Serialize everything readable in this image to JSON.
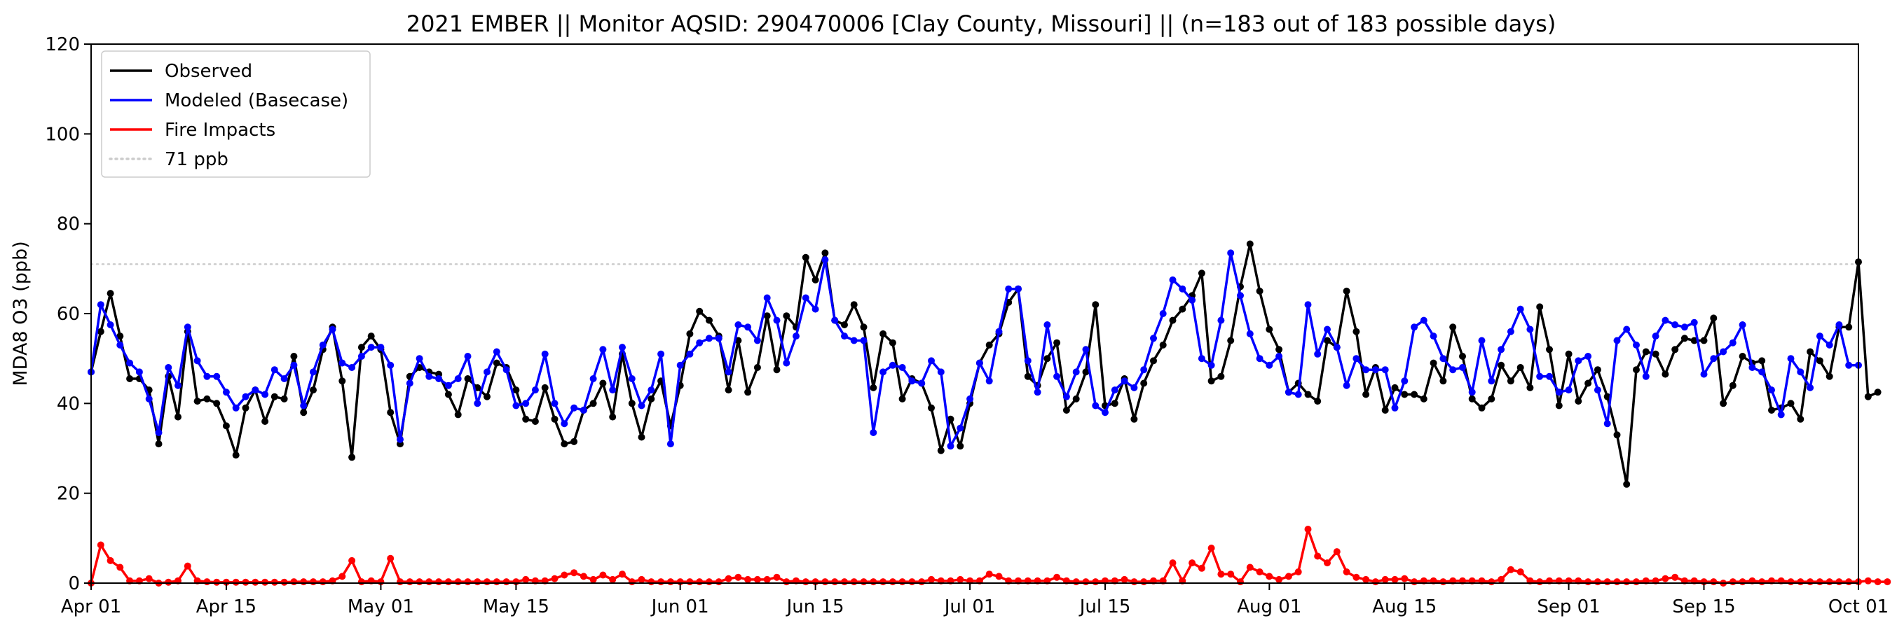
{
  "chart_data": {
    "type": "line",
    "title": "2021 EMBER || Monitor AQSID: 290470006 [Clay County, Missouri] || (n=183 out of 183 possible days)",
    "xlabel": "",
    "ylabel": "MDA8 O3 (ppb)",
    "ylim": [
      0,
      120
    ],
    "yticks": [
      0,
      20,
      40,
      60,
      80,
      100,
      120
    ],
    "xlim": [
      "2021-04-01",
      "2021-10-01"
    ],
    "xticks": [
      {
        "label": "Apr 01",
        "date": "2021-04-01"
      },
      {
        "label": "Apr 15",
        "date": "2021-04-15"
      },
      {
        "label": "May 01",
        "date": "2021-05-01"
      },
      {
        "label": "May 15",
        "date": "2021-05-15"
      },
      {
        "label": "Jun 01",
        "date": "2021-06-01"
      },
      {
        "label": "Jun 15",
        "date": "2021-06-15"
      },
      {
        "label": "Jul 01",
        "date": "2021-07-01"
      },
      {
        "label": "Jul 15",
        "date": "2021-07-15"
      },
      {
        "label": "Aug 01",
        "date": "2021-08-01"
      },
      {
        "label": "Aug 15",
        "date": "2021-08-15"
      },
      {
        "label": "Sep 01",
        "date": "2021-09-01"
      },
      {
        "label": "Sep 15",
        "date": "2021-09-15"
      },
      {
        "label": "Oct 01",
        "date": "2021-10-01"
      }
    ],
    "x_start": "2021-04-01",
    "grid": false,
    "legend_position": "upper-left",
    "reference_line": {
      "label": "71 ppb",
      "value": 71,
      "color": "#cccccc",
      "style": "dotted"
    },
    "series": [
      {
        "name": "Observed",
        "color": "#000000",
        "values": [
          47,
          56,
          64.5,
          55,
          45.5,
          45.5,
          43,
          31,
          46,
          37,
          56,
          40.5,
          41,
          40,
          35,
          28.5,
          39,
          43,
          36,
          41.5,
          41,
          50.5,
          38,
          43,
          52,
          57,
          45,
          28,
          52.5,
          55,
          52,
          38,
          31,
          46,
          48,
          47,
          46.5,
          42,
          37.5,
          45.5,
          43.5,
          41.5,
          49,
          48,
          43,
          36.5,
          36,
          43.5,
          36.5,
          31,
          31.5,
          38.5,
          40,
          44.5,
          37,
          51,
          40,
          32.5,
          41,
          45,
          35,
          44,
          55.5,
          60.5,
          58.5,
          55,
          43,
          54,
          42.5,
          48,
          59.5,
          47.5,
          59.5,
          57,
          72.5,
          67.5,
          73.5,
          58.5,
          57.5,
          62,
          57,
          43.5,
          55.5,
          53.5,
          41,
          45.5,
          44.5,
          39,
          29.5,
          36.5,
          30.5,
          40,
          49,
          53,
          55.5,
          62.5,
          65.5,
          46,
          44,
          50,
          53.5,
          38.5,
          41,
          47,
          62,
          39.5,
          40,
          45.5,
          36.5,
          44.5,
          49.5,
          53,
          58.5,
          61,
          64,
          69,
          45,
          46,
          54,
          66,
          75.5,
          65,
          56.5,
          52,
          42.5,
          44.5,
          42,
          40.5,
          54,
          52.5,
          65,
          56,
          42,
          48,
          38.5,
          43.5,
          42,
          42,
          41,
          49,
          45,
          57,
          50.5,
          41,
          39,
          41,
          48.5,
          45,
          48,
          43.5,
          61.5,
          52,
          39.5,
          51,
          40.5,
          44.5,
          47.5,
          41.5,
          33,
          22,
          47.5,
          51.5,
          51,
          46.5,
          52,
          54.5,
          54,
          54,
          59,
          40,
          44,
          50.5,
          49,
          49.5,
          38.5,
          39,
          40,
          36.5,
          51.5,
          49.5,
          46,
          57,
          57,
          71.5,
          41.5,
          42.5
        ]
      },
      {
        "name": "Modeled (Basecase)",
        "color": "#0000ff",
        "values": [
          47,
          62,
          57.5,
          53,
          49,
          47,
          41,
          33.5,
          48,
          44,
          57,
          49.5,
          46,
          46,
          42.5,
          39,
          41.5,
          43,
          42,
          47.5,
          45.5,
          48.5,
          39.5,
          47,
          53,
          56.5,
          49,
          48,
          50.5,
          52.5,
          52.5,
          48.5,
          32,
          44.5,
          50,
          46,
          45.5,
          44,
          45.5,
          50.5,
          40,
          47,
          51.5,
          47.5,
          39.5,
          40,
          43,
          51,
          40,
          35.5,
          39,
          38.5,
          45.5,
          52,
          43,
          52.5,
          45.5,
          39.5,
          43,
          51,
          31,
          48.5,
          51,
          53.5,
          54.5,
          54.5,
          47,
          57.5,
          57,
          54,
          63.5,
          58.5,
          49,
          55,
          63.5,
          61,
          72,
          58.5,
          55,
          54,
          54,
          33.5,
          47,
          48.5,
          48,
          45,
          44.5,
          49.5,
          47,
          30.5,
          34.5,
          41,
          49,
          45,
          56,
          65.5,
          65.5,
          49.5,
          42.5,
          57.5,
          46,
          41.5,
          47,
          52,
          39.5,
          38,
          43,
          45,
          43.5,
          47.5,
          54.5,
          60,
          67.5,
          65.5,
          63,
          50,
          48.5,
          58.5,
          73.5,
          64,
          55.5,
          50,
          48.5,
          50.5,
          42.5,
          42,
          62,
          51,
          56.5,
          52.5,
          44,
          50,
          47.5,
          47.5,
          47.5,
          39,
          45,
          57,
          58.5,
          55,
          50,
          47.5,
          48,
          42.5,
          54,
          45,
          52,
          56,
          61,
          56.5,
          46,
          46,
          42.5,
          43,
          49.5,
          50.5,
          43,
          35.5,
          54,
          56.5,
          53,
          46,
          55,
          58.5,
          57.5,
          57,
          58,
          46.5,
          50,
          51.5,
          53.5,
          57.5,
          48,
          47,
          43,
          37.5,
          50,
          47,
          43.5,
          55,
          53,
          57.5,
          48.5,
          48.5
        ]
      },
      {
        "name": "Fire Impacts",
        "color": "#ff0000",
        "values": [
          0,
          8.5,
          5,
          3.5,
          0.5,
          0.5,
          1,
          0,
          0.2,
          0.5,
          3.8,
          0.5,
          0.3,
          0.2,
          0.2,
          0.2,
          0.2,
          0.2,
          0.2,
          0.2,
          0.2,
          0.3,
          0.3,
          0.3,
          0.3,
          0.5,
          1.5,
          5,
          0.3,
          0.5,
          0.3,
          5.5,
          0.3,
          0.3,
          0.3,
          0.3,
          0.3,
          0.3,
          0.3,
          0.3,
          0.3,
          0.3,
          0.3,
          0.3,
          0.3,
          0.8,
          0.5,
          0.5,
          1,
          1.8,
          2.3,
          1.5,
          0.8,
          1.8,
          0.8,
          2,
          0.3,
          0.8,
          0.3,
          0.3,
          0.3,
          0.3,
          0.3,
          0.3,
          0.3,
          0.3,
          1,
          1.3,
          0.8,
          0.8,
          0.8,
          1.3,
          0.3,
          0.5,
          0.3,
          0.3,
          0.3,
          0.3,
          0.3,
          0.3,
          0.3,
          0.3,
          0.3,
          0.3,
          0.3,
          0.3,
          0.3,
          0.8,
          0.5,
          0.5,
          0.8,
          0.5,
          0.5,
          2,
          1.5,
          0.5,
          0.5,
          0.5,
          0.5,
          0.5,
          1.3,
          0.5,
          0.3,
          0.3,
          0.3,
          0.5,
          0.5,
          0.8,
          0.3,
          0.3,
          0.5,
          0.5,
          4.5,
          0.5,
          4.5,
          3.3,
          7.8,
          2,
          2,
          0.3,
          3.5,
          2.5,
          1.5,
          0.8,
          1.5,
          2.5,
          12,
          6,
          4.5,
          7,
          2.5,
          1.3,
          0.8,
          0.3,
          0.8,
          0.8,
          1,
          0.3,
          0.5,
          0.5,
          0.3,
          0.5,
          0.5,
          0.5,
          0.5,
          0.3,
          0.8,
          3,
          2.5,
          0.5,
          0.3,
          0.5,
          0.5,
          0.5,
          0.5,
          0.3,
          0.3,
          0.3,
          0.3,
          0.3,
          0.3,
          0.5,
          0.5,
          1,
          1.3,
          0.5,
          0.5,
          0.3,
          0.3,
          0,
          0.3,
          0.3,
          0.5,
          0.3,
          0.5,
          0.5,
          0.3,
          0.3,
          0.3,
          0.3,
          0.3,
          0.3,
          0.3,
          0.3,
          0.5,
          0.3,
          0.3
        ]
      }
    ]
  }
}
